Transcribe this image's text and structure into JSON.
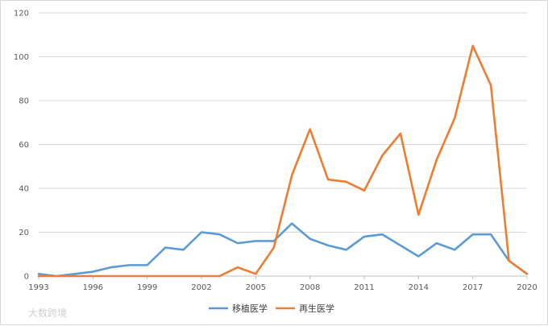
{
  "chart_data": {
    "type": "line",
    "title": "",
    "xlabel": "",
    "ylabel": "",
    "x": [
      1993,
      1994,
      1995,
      1996,
      1997,
      1998,
      1999,
      2000,
      2001,
      2002,
      2003,
      2004,
      2005,
      2006,
      2007,
      2008,
      2009,
      2010,
      2011,
      2012,
      2013,
      2014,
      2015,
      2016,
      2017,
      2018,
      2019,
      2020
    ],
    "x_tick_labels": [
      "1993",
      "1996",
      "1999",
      "2002",
      "2005",
      "2008",
      "2011",
      "2014",
      "2017",
      "2020"
    ],
    "y_tick_labels": [
      "0",
      "20",
      "40",
      "60",
      "80",
      "100",
      "120"
    ],
    "ylim": [
      0,
      120
    ],
    "grid": true,
    "legend_position": "bottom",
    "series": [
      {
        "name": "移植医学",
        "color": "#5b9bd5",
        "values": [
          1,
          0,
          1,
          2,
          4,
          5,
          5,
          13,
          12,
          20,
          19,
          15,
          16,
          16,
          24,
          17,
          14,
          12,
          18,
          19,
          14,
          9,
          15,
          12,
          19,
          19,
          7,
          1
        ]
      },
      {
        "name": "再生医学",
        "color": "#ed7d31",
        "values": [
          0,
          0,
          0,
          0,
          0,
          0,
          0,
          0,
          0,
          0,
          0,
          4,
          1,
          13,
          46,
          67,
          44,
          43,
          39,
          55,
          65,
          28,
          53,
          72,
          105,
          87,
          7,
          1
        ]
      }
    ]
  },
  "watermark": "大数跨境"
}
